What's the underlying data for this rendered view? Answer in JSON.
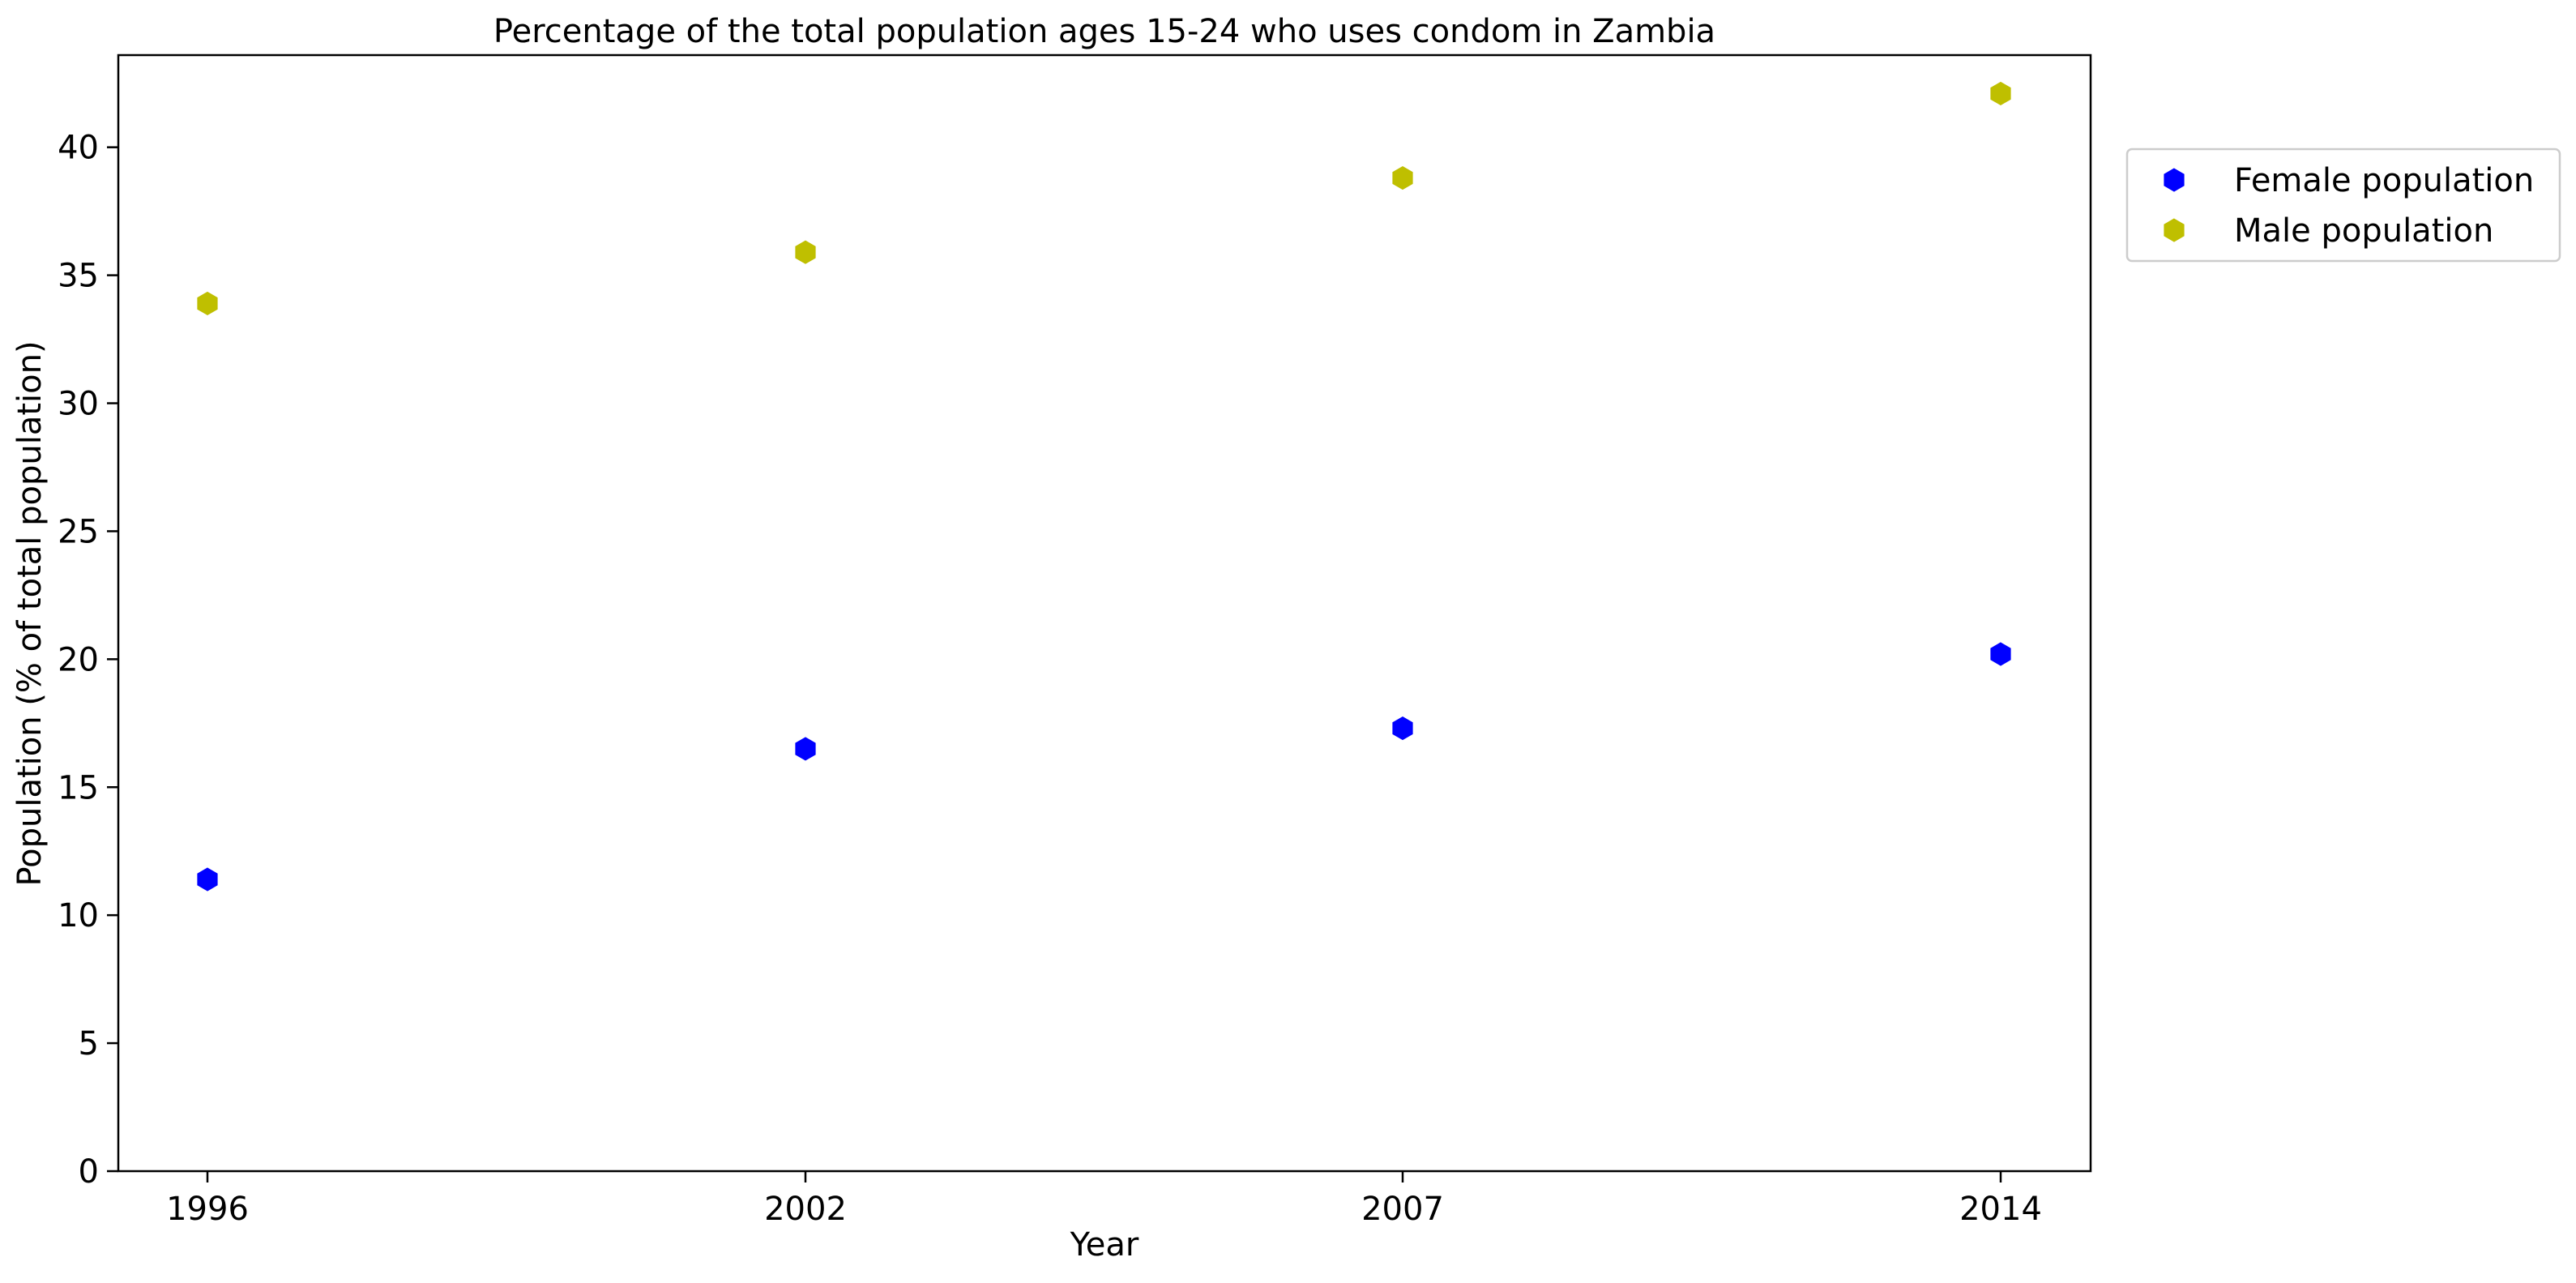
{
  "chart_data": {
    "type": "scatter",
    "title": "Percentage of the total population ages 15-24 who uses condom in Zambia",
    "xlabel": "Year",
    "ylabel": "Population (% of total population)",
    "categories": [
      "1996",
      "2002",
      "2007",
      "2014"
    ],
    "ylim": [
      0,
      43.6
    ],
    "yticks": [
      0,
      5,
      10,
      15,
      20,
      25,
      30,
      35,
      40
    ],
    "grid": false,
    "legend_placement": "outside-top-right",
    "marker": "hexagon",
    "series": [
      {
        "name": "Female population",
        "color": "#0000ff",
        "values": [
          11.4,
          16.5,
          17.3,
          20.2
        ]
      },
      {
        "name": "Male population",
        "color": "#bfbf00",
        "values": [
          33.9,
          35.9,
          38.8,
          42.1
        ]
      }
    ]
  }
}
